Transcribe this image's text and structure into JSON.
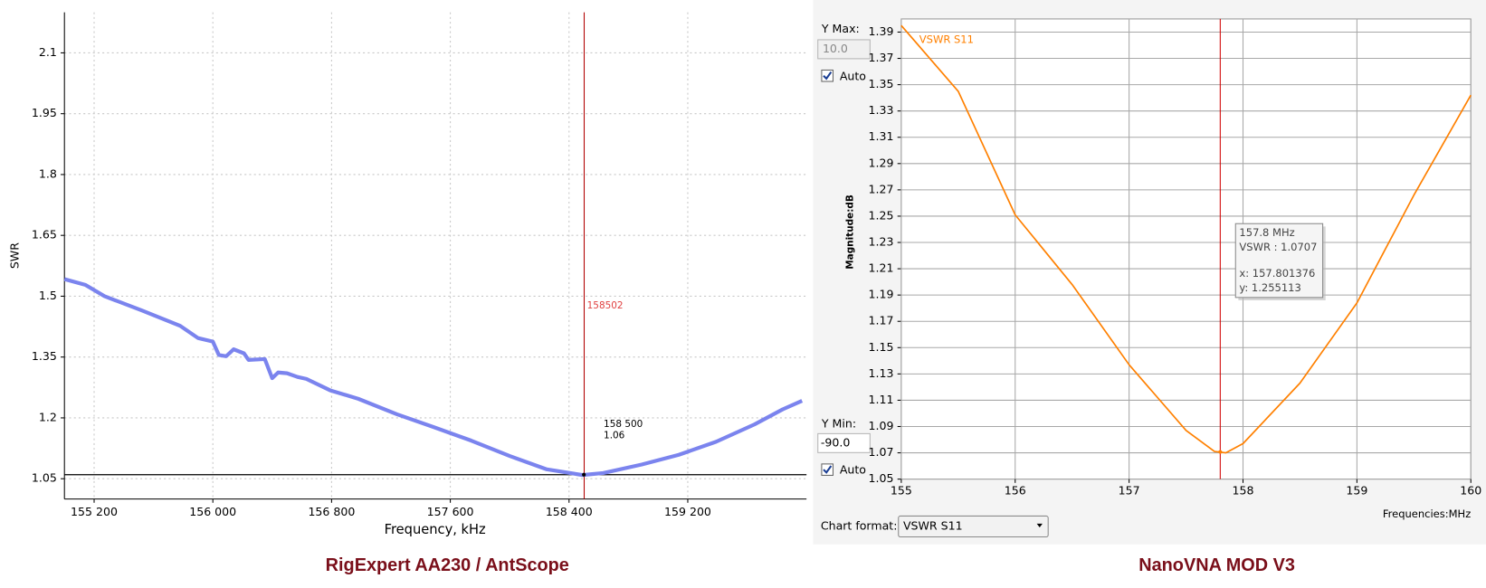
{
  "chart_data": [
    {
      "type": "line",
      "caption": "RigExpert AA230 / AntScope",
      "x_label": "Frequency, kHz",
      "y_label": "SWR",
      "color": "#7b84ee",
      "x": [
        155000,
        155140,
        155270,
        155520,
        155780,
        155900,
        156000,
        156040,
        156090,
        156140,
        156210,
        156240,
        156350,
        156400,
        156440,
        156500,
        156570,
        156630,
        156790,
        156980,
        157240,
        157490,
        157740,
        158000,
        158250,
        158490,
        158630,
        158890,
        159140,
        159390,
        159650,
        159840,
        159970
      ],
      "values": [
        1.542,
        1.528,
        1.5,
        1.465,
        1.427,
        1.397,
        1.388,
        1.355,
        1.352,
        1.369,
        1.359,
        1.343,
        1.345,
        1.298,
        1.312,
        1.31,
        1.301,
        1.296,
        1.268,
        1.247,
        1.209,
        1.177,
        1.144,
        1.106,
        1.073,
        1.059,
        1.064,
        1.085,
        1.109,
        1.141,
        1.184,
        1.221,
        1.242
      ],
      "xlim": [
        155000,
        160000
      ],
      "xticks": [
        {
          "value": 155200,
          "label": "155 200"
        },
        {
          "value": 156000,
          "label": "156 000"
        },
        {
          "value": 156800,
          "label": "156 800"
        },
        {
          "value": 157600,
          "label": "157 600"
        },
        {
          "value": 158400,
          "label": "158 400"
        },
        {
          "value": 159200,
          "label": "159 200"
        }
      ],
      "ylim": [
        1.0,
        2.2
      ],
      "yticks": [
        1.05,
        1.2,
        1.35,
        1.5,
        1.65,
        1.8,
        1.95,
        2.1
      ],
      "grid": true,
      "marker_x": 158502,
      "point_label": {
        "x": {
          "value": 158500,
          "label": "158 500"
        },
        "y": 1.06
      }
    },
    {
      "type": "line",
      "caption": "NanoVNA MOD V3",
      "x_label": "Frequencies:MHz",
      "y_label": "Magnitude:dB",
      "x": [
        155.0,
        155.5,
        156.0,
        156.5,
        157.0,
        157.5,
        157.75,
        157.85,
        158.0,
        158.5,
        159.0,
        159.5,
        160.0
      ],
      "series": [
        {
          "name": "VSWR S11",
          "color": "#ff8000",
          "values": [
            1.395,
            1.345,
            1.251,
            1.198,
            1.137,
            1.087,
            1.071,
            1.07,
            1.077,
            1.123,
            1.184,
            1.266,
            1.342
          ]
        }
      ],
      "xlim": [
        155,
        160
      ],
      "xticks": [
        155,
        156,
        157,
        158,
        159,
        160
      ],
      "ylim": [
        1.05,
        1.4
      ],
      "yticks": [
        1.05,
        1.07,
        1.09,
        1.11,
        1.13,
        1.15,
        1.17,
        1.19,
        1.21,
        1.23,
        1.25,
        1.27,
        1.29,
        1.31,
        1.33,
        1.35,
        1.37,
        1.39
      ],
      "grid": true,
      "tooltip": {
        "x": 157.8,
        "x_label": "157.8 MHz",
        "value": 1.0707,
        "value_label": "VSWR :  1.0707",
        "mouse_x": 157.801376,
        "mouse_x_label": "x: 157.801376",
        "mouse_y": 1.255113,
        "mouse_y_label": "y: 1.255113"
      }
    }
  ],
  "controls": {
    "y_max_label": "Y Max:",
    "y_max": "10.0",
    "auto_1": "Auto",
    "y_min_label": "Y Min:",
    "y_min": "-90.0",
    "auto_2": "Auto",
    "chart_format_label": "Chart format:",
    "chart_format": "VSWR S11"
  }
}
